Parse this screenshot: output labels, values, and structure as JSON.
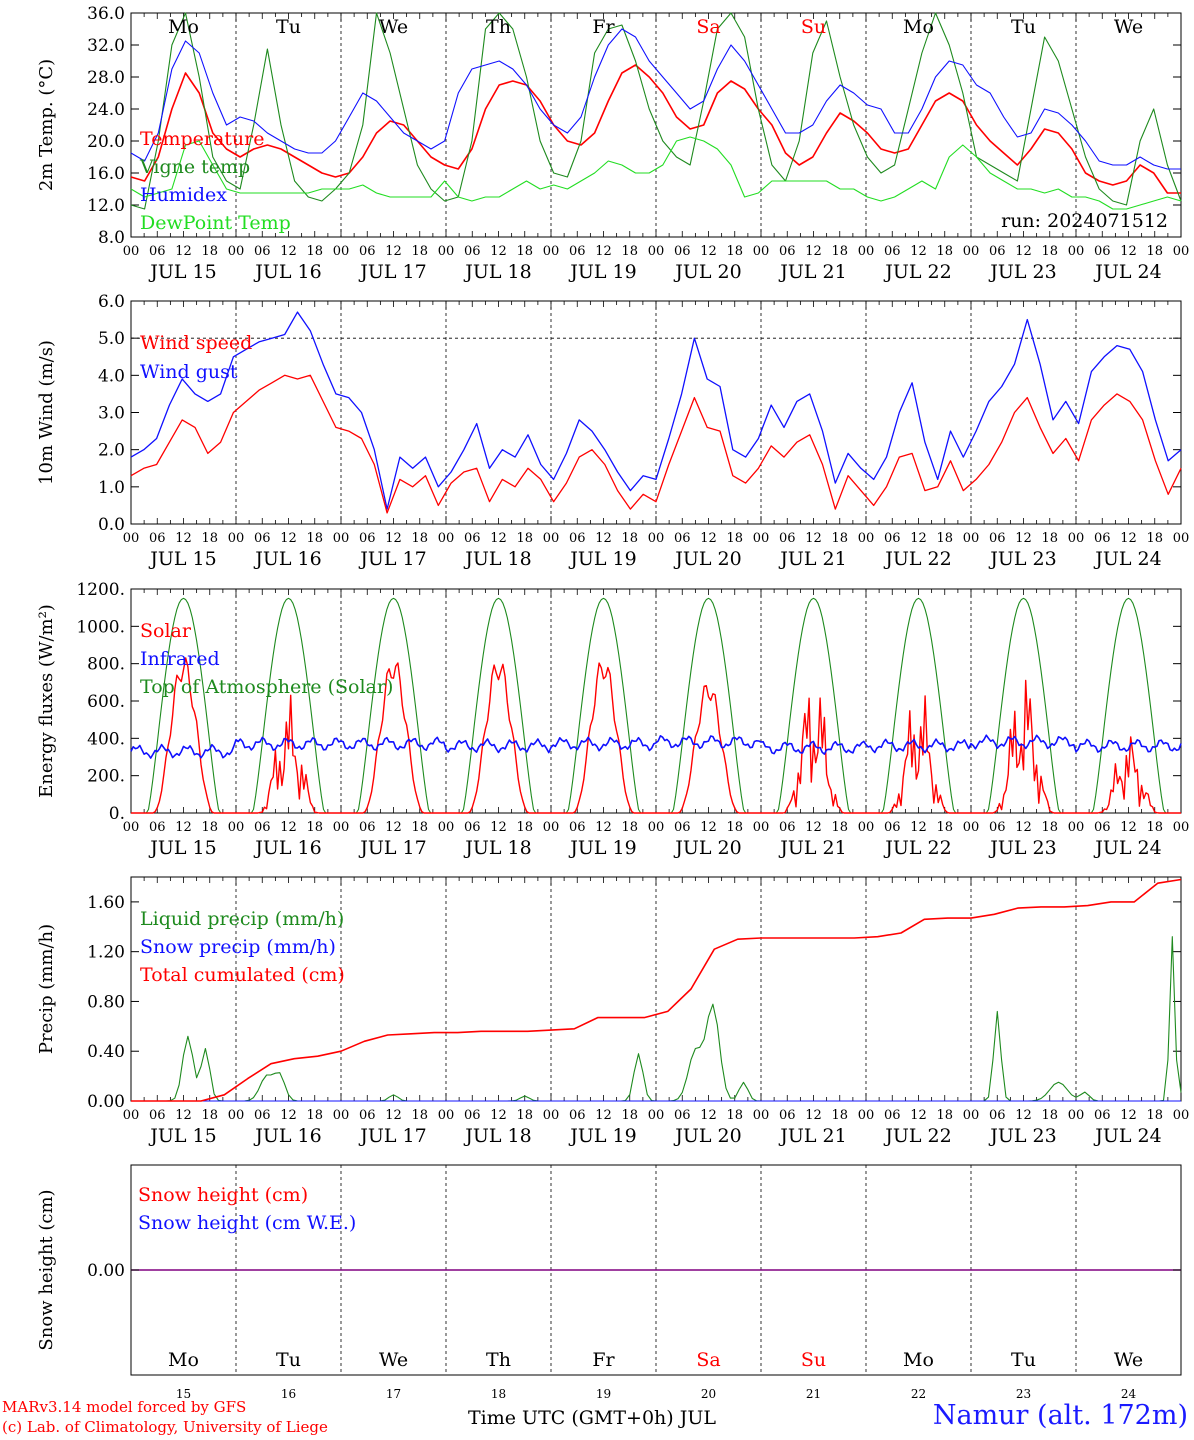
{
  "colors": {
    "red": "#ff0000",
    "blue": "#1010ff",
    "green": "#1e8a1e",
    "lightgreen": "#22dd22",
    "purple": "#800080",
    "black": "#000000"
  },
  "days": [
    "Mo",
    "Tu",
    "We",
    "Th",
    "Fr",
    "Sa",
    "Su",
    "Mo",
    "Tu",
    "We"
  ],
  "weekend_days": [
    5,
    6
  ],
  "date_labels": [
    "JUL 15",
    "JUL 16",
    "JUL 17",
    "JUL 18",
    "JUL 19",
    "JUL 20",
    "JUL 21",
    "JUL 22",
    "JUL 23",
    "JUL 24"
  ],
  "day_numbers": [
    "15",
    "16",
    "17",
    "18",
    "19",
    "20",
    "21",
    "22",
    "23",
    "24"
  ],
  "hour_ticks": [
    "00",
    "06",
    "12",
    "18"
  ],
  "footer": {
    "xlabel": "Time UTC (GMT+0h) JUL",
    "credit_line1": "MARv3.14 model forced by GFS",
    "credit_line2": "(c) Lab. of Climatology, University of Liege",
    "station": "Namur (alt. 172m)"
  },
  "chart_data": [
    {
      "type": "line",
      "ylabel": "2m Temp. (°C)",
      "ylim": [
        8,
        36
      ],
      "yticks": [
        "8.0",
        "12.0",
        "16.0",
        "20.0",
        "24.0",
        "28.0",
        "32.0",
        "36.0"
      ],
      "annotation": "run: 2024071512",
      "series": [
        {
          "name": "Temperature",
          "color": "red",
          "values": [
            15.5,
            15,
            18,
            24,
            28.5,
            26,
            21,
            19,
            18,
            19,
            19.5,
            19,
            18,
            17,
            16,
            15.5,
            16,
            18,
            21,
            22.5,
            22,
            20,
            18,
            17,
            16.5,
            19,
            24,
            27,
            27.5,
            27,
            25,
            22,
            20,
            19.5,
            21,
            25,
            28.5,
            29.5,
            28,
            26,
            23,
            21.5,
            22,
            26,
            27.5,
            26.5,
            24,
            22,
            18.5,
            17,
            18,
            21,
            23.5,
            22.5,
            21,
            19,
            18.5,
            19,
            22,
            25,
            26,
            25,
            22,
            20,
            18.5,
            17,
            19,
            21.5,
            21,
            19,
            16,
            15,
            14.5,
            15,
            17,
            16,
            13.5,
            13.5
          ]
        },
        {
          "name": "Vigne temp",
          "color": "green",
          "values": [
            12,
            11.5,
            20,
            32,
            36,
            28,
            18,
            15,
            14,
            22,
            31.5,
            22,
            15,
            13,
            12.5,
            14,
            16,
            22,
            36,
            31,
            24,
            17,
            14,
            12.5,
            13,
            20,
            34,
            36,
            34,
            28,
            20,
            16,
            15.5,
            20,
            31,
            34,
            34.5,
            30,
            24,
            20,
            18,
            17,
            25,
            34,
            36,
            33,
            24,
            17,
            15,
            20,
            31,
            35,
            28,
            22,
            18,
            16,
            17,
            24,
            31,
            36,
            32,
            26,
            18,
            17,
            16,
            15,
            24,
            33,
            30,
            24,
            18,
            14,
            12.5,
            12,
            20,
            24,
            17,
            12.5
          ]
        },
        {
          "name": "Humidex",
          "color": "blue",
          "values": [
            18.5,
            17.5,
            21,
            29,
            32.5,
            31,
            26,
            22,
            23,
            22.5,
            21,
            20,
            19,
            18.5,
            18.5,
            20,
            23,
            26,
            25,
            23,
            21,
            20,
            19,
            20,
            26,
            29,
            29.5,
            30,
            29,
            27,
            24,
            22,
            21,
            23,
            28,
            32,
            34,
            33,
            30,
            28,
            26,
            24,
            25,
            29,
            32,
            30,
            27,
            24,
            21,
            21,
            22,
            25,
            27,
            26,
            24.5,
            24,
            21,
            21,
            24,
            28,
            30,
            29.5,
            27,
            26,
            23,
            20.5,
            21,
            24,
            23.5,
            22,
            20,
            17.5,
            17,
            17,
            18,
            17,
            16.5,
            16.5
          ]
        },
        {
          "name": "DewPoint Temp",
          "color": "lightgreen",
          "values": [
            14,
            13,
            13.5,
            14,
            19.5,
            20,
            17,
            14,
            13.5,
            13.5,
            13.5,
            13.5,
            13.5,
            13.5,
            14,
            14,
            14,
            14.5,
            13.5,
            13,
            13,
            13,
            13,
            15,
            13,
            12.5,
            13,
            13,
            14,
            15,
            14,
            14.5,
            14,
            15,
            16,
            17.5,
            17,
            16,
            16,
            17,
            20,
            20.5,
            20,
            19,
            17,
            13,
            13.5,
            15,
            15,
            15,
            15,
            15,
            14,
            14,
            13,
            12.5,
            13,
            14,
            15,
            14,
            18,
            19.5,
            18,
            16,
            15,
            14,
            14,
            13.5,
            14,
            13,
            13,
            12.5,
            11.5,
            11.5,
            12,
            12.5,
            13,
            12.5
          ]
        }
      ]
    },
    {
      "type": "line",
      "ylabel": "10m Wind (m/s)",
      "ylim": [
        0,
        6
      ],
      "yticks": [
        "0.0",
        "1.0",
        "2.0",
        "3.0",
        "4.0",
        "5.0",
        "6.0"
      ],
      "reference_line": 5.0,
      "series": [
        {
          "name": "Wind speed",
          "color": "red",
          "values": [
            1.3,
            1.5,
            1.6,
            2.2,
            2.8,
            2.6,
            1.9,
            2.2,
            3.0,
            3.3,
            3.6,
            3.8,
            4.0,
            3.9,
            4.0,
            3.3,
            2.6,
            2.5,
            2.3,
            1.6,
            0.3,
            1.2,
            1.0,
            1.3,
            0.5,
            1.1,
            1.4,
            1.5,
            0.6,
            1.2,
            1.0,
            1.5,
            1.2,
            0.6,
            1.1,
            1.8,
            2.0,
            1.6,
            0.9,
            0.4,
            0.8,
            0.6,
            1.6,
            2.5,
            3.4,
            2.6,
            2.5,
            1.3,
            1.1,
            1.5,
            2.1,
            1.8,
            2.2,
            2.4,
            1.6,
            0.4,
            1.3,
            0.9,
            0.5,
            1.0,
            1.8,
            1.9,
            0.9,
            1.0,
            1.7,
            0.9,
            1.2,
            1.6,
            2.2,
            3.0,
            3.4,
            2.6,
            1.9,
            2.3,
            1.7,
            2.8,
            3.2,
            3.5,
            3.3,
            2.8,
            1.7,
            0.8,
            1.5
          ]
        },
        {
          "name": "Wind gust",
          "color": "blue",
          "values": [
            1.8,
            2.0,
            2.3,
            3.2,
            3.9,
            3.5,
            3.3,
            3.5,
            4.5,
            4.7,
            4.9,
            5.0,
            5.1,
            5.7,
            5.2,
            4.3,
            3.5,
            3.4,
            3.0,
            2.0,
            0.4,
            1.8,
            1.5,
            1.8,
            1.0,
            1.4,
            2.0,
            2.7,
            1.5,
            2.0,
            1.8,
            2.4,
            1.6,
            1.2,
            1.9,
            2.8,
            2.5,
            2.0,
            1.4,
            0.9,
            1.3,
            1.2,
            2.3,
            3.5,
            5.0,
            3.9,
            3.7,
            2.0,
            1.8,
            2.3,
            3.2,
            2.6,
            3.3,
            3.5,
            2.5,
            1.1,
            1.9,
            1.5,
            1.2,
            1.8,
            3.0,
            3.8,
            2.2,
            1.2,
            2.5,
            1.8,
            2.5,
            3.3,
            3.7,
            4.3,
            5.5,
            4.3,
            2.8,
            3.3,
            2.7,
            4.1,
            4.5,
            4.8,
            4.7,
            4.1,
            2.8,
            1.7,
            2.0
          ]
        }
      ]
    },
    {
      "type": "line",
      "ylabel": "Energy fluxes (W/m²)",
      "ylim": [
        0,
        1200
      ],
      "yticks": [
        "0.",
        "200.",
        "400.",
        "600.",
        "800.",
        "1000.",
        "1200."
      ],
      "series": [
        {
          "name": "Solar",
          "color": "red",
          "values_note": "generated",
          "daily_peaks": [
            850,
            650,
            850,
            850,
            850,
            720,
            800,
            720,
            820,
            460
          ]
        },
        {
          "name": "Infrared",
          "color": "blue",
          "values_note": "generated",
          "daily_levels": [
            330,
            370,
            370,
            360,
            370,
            380,
            350,
            360,
            380,
            360
          ]
        },
        {
          "name": "Top of Atmosphere (Solar)",
          "color": "green",
          "peak": 1150
        }
      ]
    },
    {
      "type": "line",
      "ylabel": "Precip (mm/h)",
      "ylim": [
        0,
        1.8
      ],
      "yticks": [
        "0.00",
        "0.40",
        "0.80",
        "1.20",
        "1.60"
      ],
      "series": [
        {
          "name": "Liquid precip (mm/h)",
          "color": "green",
          "values_note": "generated"
        },
        {
          "name": "Snow precip (mm/h)",
          "color": "blue",
          "values_note": "zero"
        },
        {
          "name": "Total cumulated (cm)",
          "color": "red",
          "values": [
            0,
            0,
            0,
            0,
            0.05,
            0.18,
            0.3,
            0.34,
            0.36,
            0.4,
            0.48,
            0.53,
            0.54,
            0.55,
            0.55,
            0.56,
            0.56,
            0.56,
            0.57,
            0.58,
            0.67,
            0.67,
            0.67,
            0.72,
            0.9,
            1.22,
            1.3,
            1.31,
            1.31,
            1.31,
            1.31,
            1.31,
            1.32,
            1.35,
            1.46,
            1.47,
            1.47,
            1.5,
            1.55,
            1.56,
            1.56,
            1.57,
            1.6,
            1.6,
            1.75,
            1.78
          ]
        }
      ]
    },
    {
      "type": "line",
      "ylabel": "Snow height (cm)",
      "yticks": [
        "0.00"
      ],
      "series": [
        {
          "name": "Snow height (cm)",
          "color": "red",
          "values": [
            0
          ]
        },
        {
          "name": "Snow height (cm W.E.)",
          "color": "blue",
          "values": [
            0
          ]
        }
      ]
    }
  ]
}
